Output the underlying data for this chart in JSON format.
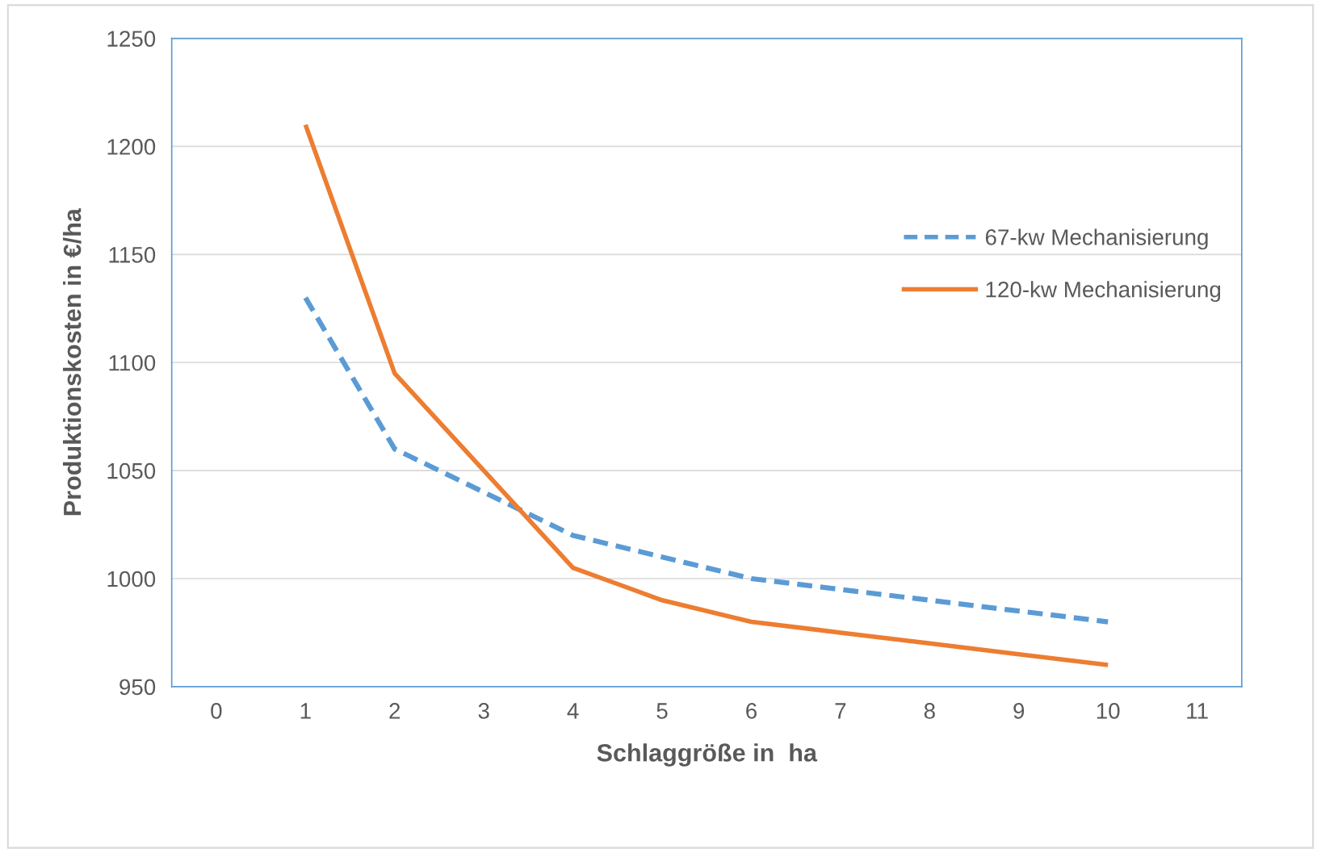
{
  "chart_data": {
    "type": "line",
    "xlabel": "Schlaggröße in  ha",
    "ylabel": "Produktionskosten in €/ha",
    "x": [
      1,
      2,
      3,
      4,
      5,
      6,
      7,
      8,
      9,
      10
    ],
    "series": [
      {
        "name": "67-kw Mechanisierung",
        "color": "#5b9bd5",
        "line_style": "dashed",
        "values": [
          1130,
          1060,
          1040,
          1020,
          1010,
          1000,
          995,
          990,
          985,
          980
        ]
      },
      {
        "name": "120-kw Mechanisierung",
        "color": "#ed7d31",
        "line_style": "solid",
        "values": [
          1210,
          1095,
          1050,
          1005,
          990,
          980,
          975,
          970,
          965,
          960
        ]
      }
    ],
    "xlim": [
      -0.5,
      11.5
    ],
    "xticks": [
      0,
      1,
      2,
      3,
      4,
      5,
      6,
      7,
      8,
      9,
      10,
      11
    ],
    "ylim": [
      950,
      1250
    ],
    "yticks": [
      950,
      1000,
      1050,
      1100,
      1150,
      1200,
      1250
    ],
    "grid": "y",
    "legend": "right",
    "marker": "none"
  }
}
